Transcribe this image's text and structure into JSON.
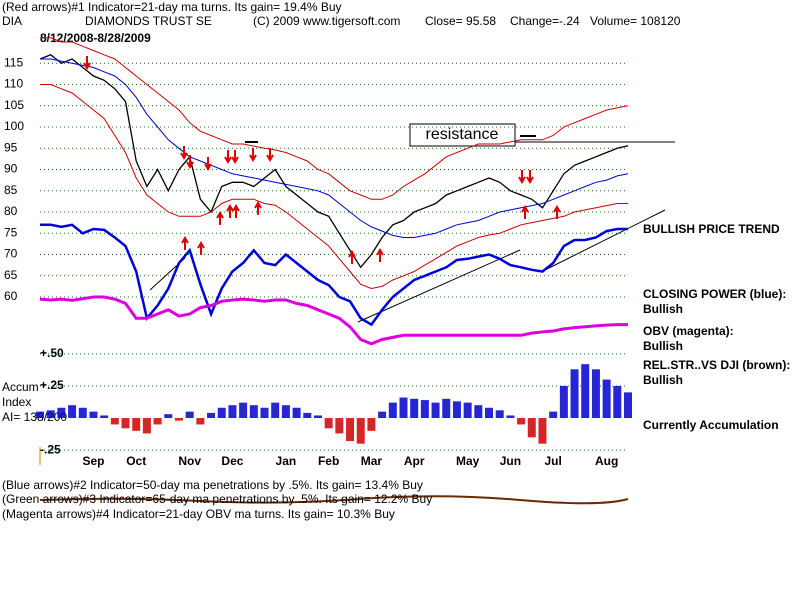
{
  "header": {
    "indicator": "(Red arrows)#1 Indicator=21-day ma turns. Its gain= 19.4% Buy",
    "symbol": "DIA",
    "name": "DIAMONDS TRUST SE",
    "copyright": "(C) 2009 www.tigersoft.com",
    "close": "Close=  95.58",
    "change": "Change=-.24",
    "volume": "Volume= 108120",
    "period": "8/12/2008-8/28/2009"
  },
  "notes": {
    "resistance": "resistance",
    "trend": "BULLISH PRICE TREND",
    "closing_power_status": "Bullish",
    "obv_status": "Bullish",
    "rel_str": "REL.STR..VS DJI (brown):",
    "rel_str_status": "Bullish",
    "accumulation": "Currently Accumulation",
    "accum_label": [
      "Accum",
      "Index",
      "AI= 138/200"
    ]
  },
  "footer": [
    "(Blue arrows)#2 Indicator=50-day ma penetrations by .5%. Its gain= 13.4% Buy",
    "(Green arrows)#3 Indicator=65-day ma penetrations by .5%. Its gain= 12.2% Buy",
    "(Magenta arrows)#4 Indicator=21-day OBV ma turns. Its gain= 10.3% Buy"
  ],
  "chart_data": [
    {
      "type": "line",
      "grid": true,
      "categories": [
        null,
        null,
        null,
        null,
        null,
        "Sep",
        null,
        null,
        null,
        "Oct",
        null,
        null,
        null,
        null,
        "Nov",
        null,
        null,
        null,
        "Dec",
        null,
        null,
        null,
        null,
        "Jan",
        null,
        null,
        null,
        "Feb",
        null,
        null,
        null,
        "Mar",
        null,
        null,
        null,
        "Apr",
        null,
        null,
        null,
        null,
        "May",
        null,
        null,
        null,
        "Jun",
        null,
        null,
        null,
        "Jul",
        null,
        null,
        null,
        null,
        "Aug",
        null,
        null
      ],
      "ylim": [
        48,
        120
      ],
      "yticks": [
        115,
        110,
        105,
        100,
        95,
        90,
        85,
        80,
        75,
        70,
        65,
        60
      ],
      "series": [
        {
          "color": "#000000",
          "width": 1.3,
          "values": [
            116,
            117,
            115,
            116,
            114,
            112,
            111,
            109,
            106,
            92,
            86,
            90,
            85,
            90,
            93,
            83,
            80,
            86,
            87,
            87,
            86,
            88,
            90,
            86,
            84,
            82,
            80,
            79,
            75,
            71,
            67,
            70,
            74,
            77,
            78,
            80,
            81,
            82,
            84,
            85,
            86,
            87,
            88,
            87,
            85,
            84,
            83,
            81,
            85,
            89,
            91,
            92,
            93,
            94,
            95,
            95.58
          ]
        },
        {
          "color": "#cc0000",
          "width": 1,
          "values": [
            121,
            121,
            120,
            120,
            119,
            118,
            117,
            116,
            114,
            112,
            110,
            108,
            106,
            104,
            101,
            99,
            98,
            97,
            96,
            96,
            95.5,
            95,
            94.6,
            94,
            93,
            92,
            90,
            89,
            87,
            85,
            84,
            83,
            83,
            84,
            86,
            87.5,
            89,
            91,
            93,
            94,
            95,
            96,
            96,
            96,
            96.5,
            97,
            97,
            97,
            98,
            100,
            101,
            102,
            103,
            104,
            104.5,
            105
          ]
        },
        {
          "color": "#cc0000",
          "width": 1,
          "values": [
            110,
            110,
            109,
            108,
            106,
            104,
            102,
            98,
            94,
            88,
            84,
            82,
            80,
            79,
            79,
            79,
            80,
            82,
            83,
            83,
            83,
            82,
            81.6,
            80,
            78,
            76,
            74,
            72,
            69,
            66,
            63,
            62,
            62.5,
            64,
            65,
            66,
            67.5,
            69,
            70.5,
            72,
            73,
            74,
            74.6,
            75,
            76,
            77,
            77.5,
            78,
            78.5,
            79,
            80,
            80.5,
            81,
            81.5,
            82,
            82
          ]
        },
        {
          "color": "#0000cc",
          "width": 1,
          "values": [
            116,
            116,
            115.5,
            115,
            114.5,
            114,
            113,
            112,
            110,
            107,
            103,
            100,
            97,
            95,
            93,
            92,
            91,
            90,
            89,
            88.5,
            88,
            87.5,
            87,
            86.5,
            86,
            85.5,
            85,
            84,
            82,
            80,
            78,
            76.5,
            75.5,
            74.5,
            74,
            74,
            74.5,
            75,
            76,
            77,
            77.5,
            78,
            79,
            80,
            80.5,
            81,
            81.5,
            82,
            83,
            84,
            85,
            86,
            87,
            87.5,
            88.5,
            89
          ]
        },
        {
          "name": "CLOSING POWER (blue):",
          "color": "#0000dd",
          "width": 2.5,
          "values": [
            77,
            77,
            76.5,
            77,
            75,
            76,
            75.8,
            74,
            72,
            66,
            55,
            58,
            62,
            68,
            71,
            63,
            56,
            62,
            66,
            68,
            71,
            68,
            67.5,
            70,
            68,
            66,
            64,
            62.8,
            60,
            59,
            55,
            53.5,
            57,
            60,
            62,
            64,
            65,
            66,
            67,
            68.7,
            69,
            69.5,
            70,
            69,
            67.5,
            67,
            66.4,
            66,
            68,
            72,
            73.4,
            73.4,
            74,
            75.5,
            76,
            76
          ]
        },
        {
          "name": "OBV (magenta):",
          "color": "#dd00dd",
          "width": 3,
          "values": [
            59.5,
            59.3,
            59.5,
            59.2,
            59.6,
            60,
            60,
            59.5,
            58.5,
            55,
            55,
            56,
            57,
            55.5,
            56,
            57.5,
            58,
            59,
            59.3,
            59.5,
            59.3,
            59,
            59.3,
            59.3,
            58.5,
            58,
            57,
            56,
            55,
            53,
            50,
            49,
            50,
            50.5,
            51,
            51,
            51,
            51,
            51,
            51,
            51,
            51,
            51,
            51,
            51,
            51,
            51.5,
            51.8,
            52,
            52.5,
            52.8,
            53,
            53.2,
            53.4,
            53.5,
            53.5
          ]
        }
      ]
    },
    {
      "type": "bar",
      "grid": true,
      "positive_color": "#0000cc",
      "negative_color": "#cc0000",
      "ylim": [
        -0.3,
        0.55
      ],
      "yticks": [
        {
          "value": 0.5,
          "label": "+.50"
        },
        {
          "value": 0.25,
          "label": "+.25"
        },
        {
          "value": -0.25,
          "label": "-.25"
        }
      ],
      "values": [
        0.05,
        0.06,
        0.08,
        0.1,
        0.08,
        0.05,
        0.02,
        -0.05,
        -0.08,
        -0.1,
        -0.12,
        -0.05,
        0.03,
        -0.02,
        0.05,
        -0.05,
        0.04,
        0.08,
        0.1,
        0.12,
        0.1,
        0.08,
        0.12,
        0.1,
        0.08,
        0.04,
        0.02,
        -0.08,
        -0.12,
        -0.18,
        -0.2,
        -0.1,
        0.05,
        0.12,
        0.16,
        0.15,
        0.14,
        0.12,
        0.15,
        0.13,
        0.12,
        0.1,
        0.08,
        0.06,
        0.02,
        -0.05,
        -0.15,
        -0.2,
        0.05,
        0.25,
        0.38,
        0.42,
        0.38,
        0.3,
        0.25,
        0.2
      ]
    }
  ]
}
